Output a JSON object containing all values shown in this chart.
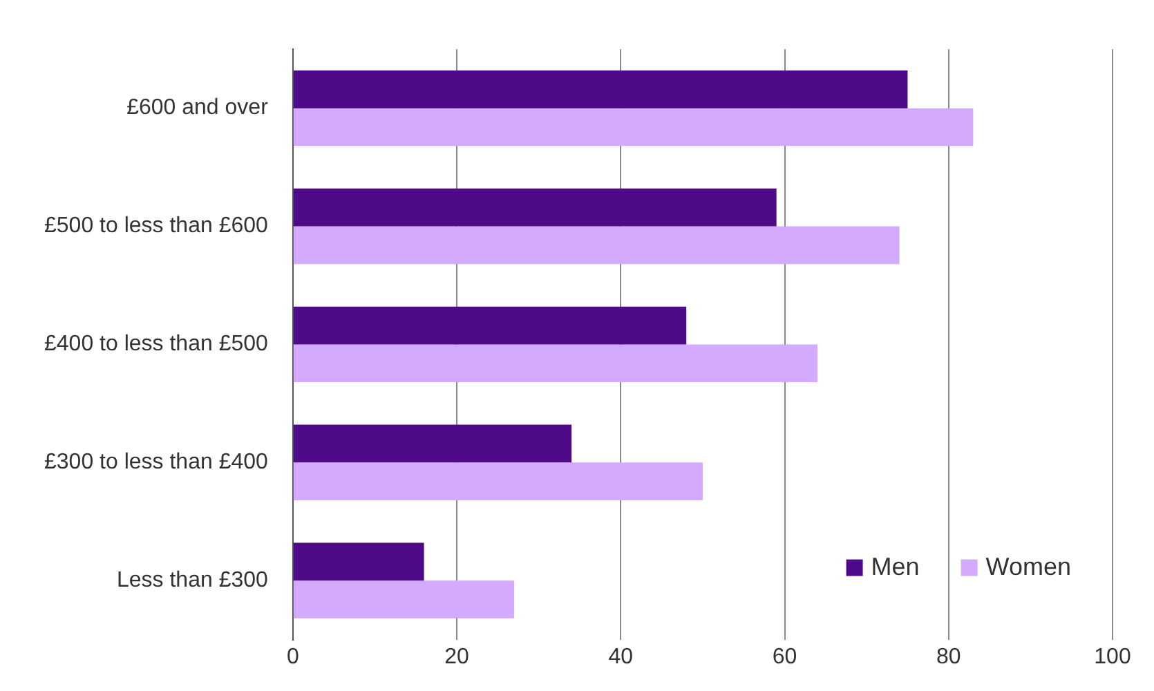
{
  "chart_data": {
    "type": "bar",
    "orientation": "horizontal",
    "categories": [
      "£600 and over",
      "£500 to less than £600",
      "£400 to less than £500",
      "£300 to less than £400",
      "Less than £300"
    ],
    "series": [
      {
        "name": "Men",
        "color": "#4f0a8a",
        "values": [
          75,
          59,
          48,
          34,
          16
        ]
      },
      {
        "name": "Women",
        "color": "#d4aaff",
        "values": [
          83,
          74,
          64,
          50,
          27
        ]
      }
    ],
    "xlim": [
      0,
      100
    ],
    "xticks": [
      0,
      20,
      40,
      60,
      80,
      100
    ],
    "grid": "x",
    "legend": "bottom right"
  }
}
